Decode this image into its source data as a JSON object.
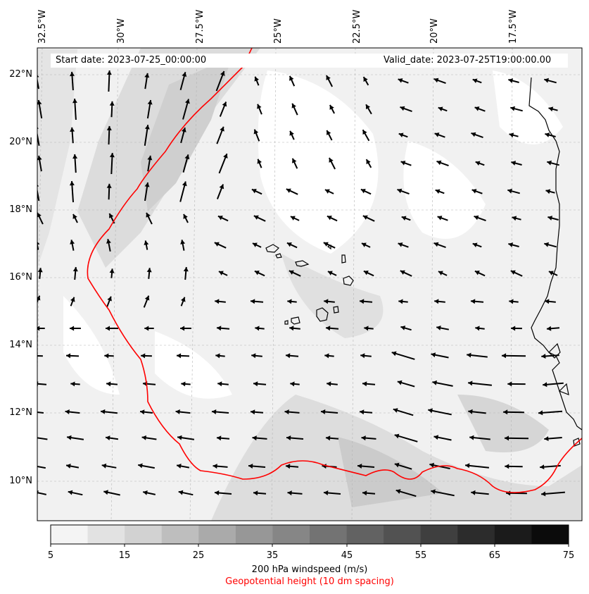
{
  "header": {
    "start_date": "Start date: 2023-07-25_00:00:00",
    "valid_date": "Valid_date: 2023-07-25T19:00:00.00"
  },
  "longitude_labels": [
    "32.5°W",
    "30°W",
    "27.5°W",
    "25°W",
    "22.5°W",
    "20°W",
    "17.5°W"
  ],
  "latitude_labels": [
    "22°N",
    "20°N",
    "18°N",
    "16°N",
    "14°N",
    "12°N",
    "10°N"
  ],
  "colorbar": {
    "ticks": [
      "5",
      "15",
      "25",
      "35",
      "45",
      "55",
      "65",
      "75"
    ],
    "label": "200 hPa windspeed (m/s)",
    "label2": "Geopotential height (10 dm spacing)",
    "colors": [
      "#f4f4f4",
      "#e2e2e2",
      "#d2d2d2",
      "#bebebe",
      "#aaaaaa",
      "#979797",
      "#868686",
      "#737373",
      "#626262",
      "#525252",
      "#3f3f3f",
      "#2c2c2c",
      "#1b1b1b",
      "#0b0b0b"
    ]
  },
  "colors": {
    "contour": "#ff0000",
    "coastline": "#000000",
    "arrow": "#000000"
  }
}
